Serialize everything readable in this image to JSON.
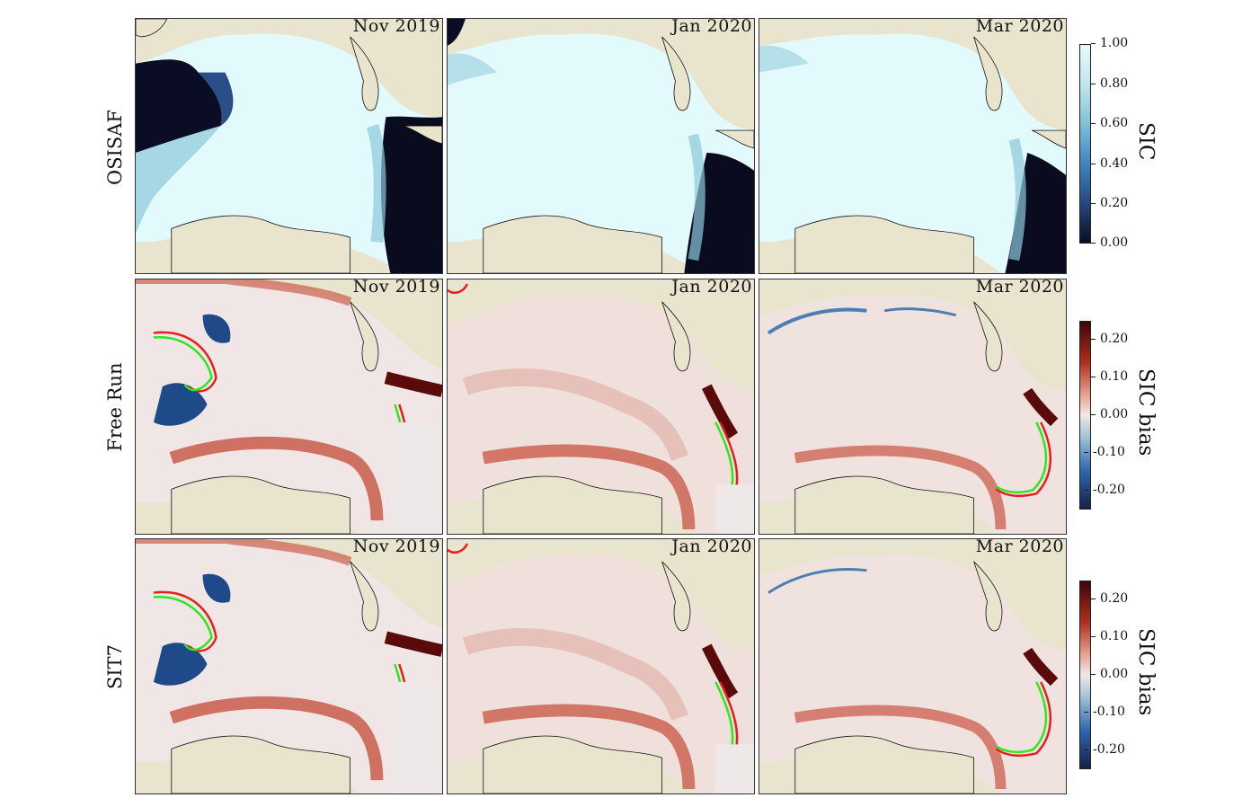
{
  "rows": [
    {
      "label": "OSISAF",
      "type": "sic"
    },
    {
      "label": "Free Run",
      "type": "bias"
    },
    {
      "label": "SIT7",
      "type": "bias"
    }
  ],
  "columns": [
    "Nov 2019",
    "Jan 2020",
    "Mar 2020"
  ],
  "colorbars": [
    {
      "title": "SIC",
      "ticks": [
        "1.00",
        "0.80",
        "0.60",
        "0.40",
        "0.20",
        "0.00"
      ],
      "colors": [
        "#e6fafc",
        "#bfe6ee",
        "#7fc0d8",
        "#3d86c0",
        "#26487e",
        "#0b0c22"
      ]
    },
    {
      "title": "SIC bias",
      "ticks": [
        "0.20",
        "0.10",
        "0.00",
        "-0.10",
        "-0.20"
      ],
      "colors": [
        "#3e0408",
        "#b0301f",
        "#e8a899",
        "#f1e8e8",
        "#9fc2d6",
        "#2c66ad",
        "#172046"
      ]
    },
    {
      "title": "SIC bias",
      "ticks": [
        "0.20",
        "0.10",
        "0.00",
        "-0.10",
        "-0.20"
      ],
      "colors": [
        "#3e0408",
        "#b0301f",
        "#e8a899",
        "#f1e8e8",
        "#9fc2d6",
        "#2c66ad",
        "#172046"
      ]
    }
  ],
  "palette": {
    "land": "#e9e4cd",
    "ice_full": "#e3fafc",
    "ice_edge": "#a9dbe6",
    "open_water": "#0a0b1f",
    "bias_neutral": "#f0e6e6",
    "bias_pos": "#c44a36",
    "bias_strong_pos": "#5b0a0a",
    "bias_neg": "#1f4a8a",
    "contour_obs": "#e51e1e",
    "contour_model": "#2ee61e"
  }
}
